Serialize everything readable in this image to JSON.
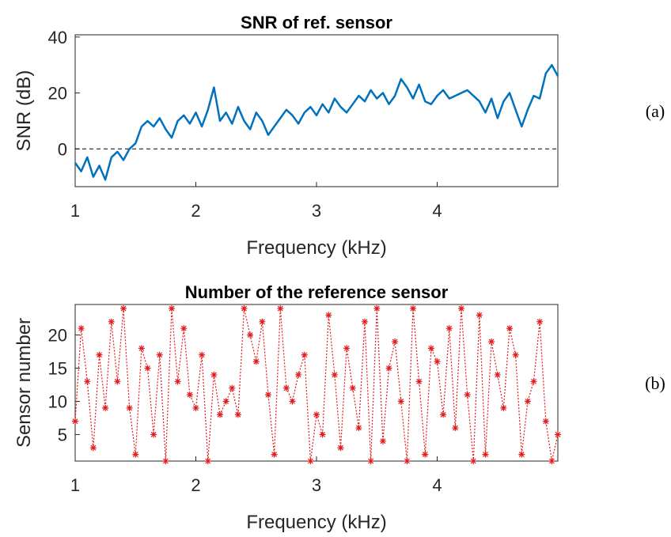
{
  "chart_data": [
    {
      "type": "line",
      "title": "SNR of ref. sensor",
      "x_label": "Frequency (kHz)",
      "y_label": "SNR (dB)",
      "panel_label": "(a)",
      "x": [
        1,
        1.05,
        1.1,
        1.15,
        1.2,
        1.25,
        1.3,
        1.35,
        1.4,
        1.45,
        1.5,
        1.55,
        1.6,
        1.65,
        1.7,
        1.75,
        1.8,
        1.85,
        1.9,
        1.95,
        2,
        2.05,
        2.1,
        2.15,
        2.2,
        2.25,
        2.3,
        2.35,
        2.4,
        2.45,
        2.5,
        2.55,
        2.6,
        2.65,
        2.7,
        2.75,
        2.8,
        2.85,
        2.9,
        2.95,
        3,
        3.05,
        3.1,
        3.15,
        3.2,
        3.25,
        3.3,
        3.35,
        3.4,
        3.45,
        3.5,
        3.55,
        3.6,
        3.65,
        3.7,
        3.75,
        3.8,
        3.85,
        3.9,
        3.95,
        4,
        4.05,
        4.1,
        4.15,
        4.2,
        4.25,
        4.3,
        4.35,
        4.4,
        4.45,
        4.5,
        4.55,
        4.6,
        4.65,
        4.7,
        4.75,
        4.8,
        4.85,
        4.9,
        4.95,
        5
      ],
      "series": [
        {
          "color": "#0072bd",
          "values": [
            -5,
            -8,
            -3,
            -10,
            -6,
            -11,
            -3,
            -1,
            -4,
            0,
            2,
            8,
            10,
            8,
            11,
            7,
            4,
            10,
            12,
            9,
            13,
            8,
            14,
            22,
            10,
            13,
            9,
            15,
            10,
            7,
            13,
            10,
            5,
            8,
            11,
            14,
            12,
            9,
            13,
            15,
            12,
            16,
            13,
            18,
            15,
            13,
            16,
            19,
            17,
            21,
            18,
            20,
            16,
            19,
            25,
            22,
            18,
            23,
            17,
            16,
            19,
            21,
            18,
            19,
            20,
            21,
            19,
            17,
            13,
            18,
            11,
            17,
            20,
            14,
            8,
            14,
            19,
            18,
            27,
            30,
            26
          ]
        }
      ],
      "xlim": [
        1,
        5
      ],
      "ylim": [
        -13.5,
        40.8
      ],
      "xticks": [
        1,
        2,
        3,
        4
      ],
      "yticks": [
        0,
        20,
        40
      ],
      "reference_line": 0
    },
    {
      "type": "line",
      "title": "Number of the reference sensor",
      "x_label": "Frequency (kHz)",
      "y_label": "Sensor number",
      "panel_label": "(b)",
      "marker": "*",
      "x": [
        1,
        1.05,
        1.1,
        1.15,
        1.2,
        1.25,
        1.3,
        1.35,
        1.4,
        1.45,
        1.5,
        1.55,
        1.6,
        1.65,
        1.7,
        1.75,
        1.8,
        1.85,
        1.9,
        1.95,
        2,
        2.05,
        2.1,
        2.15,
        2.2,
        2.25,
        2.3,
        2.35,
        2.4,
        2.45,
        2.5,
        2.55,
        2.6,
        2.65,
        2.7,
        2.75,
        2.8,
        2.85,
        2.9,
        2.95,
        3,
        3.05,
        3.1,
        3.15,
        3.2,
        3.25,
        3.3,
        3.35,
        3.4,
        3.45,
        3.5,
        3.55,
        3.6,
        3.65,
        3.7,
        3.75,
        3.8,
        3.85,
        3.9,
        3.95,
        4,
        4.05,
        4.1,
        4.15,
        4.2,
        4.25,
        4.3,
        4.35,
        4.4,
        4.45,
        4.5,
        4.55,
        4.6,
        4.65,
        4.7,
        4.75,
        4.8,
        4.85,
        4.9,
        4.95,
        5
      ],
      "series": [
        {
          "color": "#e41a1c",
          "values": [
            7,
            21,
            13,
            3,
            17,
            9,
            22,
            13,
            24,
            9,
            2,
            18,
            15,
            5,
            17,
            1,
            24,
            13,
            21,
            11,
            9,
            17,
            1,
            14,
            8,
            10,
            12,
            8,
            24,
            20,
            16,
            22,
            11,
            2,
            24,
            12,
            10,
            14,
            17,
            1,
            8,
            5,
            23,
            14,
            3,
            18,
            12,
            6,
            22,
            1,
            24,
            4,
            15,
            19,
            10,
            1,
            24,
            13,
            2,
            18,
            16,
            8,
            21,
            6,
            24,
            11,
            1,
            23,
            2,
            19,
            14,
            9,
            21,
            17,
            2,
            10,
            13,
            22,
            7,
            1,
            5
          ]
        }
      ],
      "xlim": [
        1,
        5
      ],
      "ylim": [
        1,
        24.6
      ],
      "xticks": [
        1,
        2,
        3,
        4
      ],
      "yticks": [
        5,
        10,
        15,
        20
      ]
    }
  ]
}
